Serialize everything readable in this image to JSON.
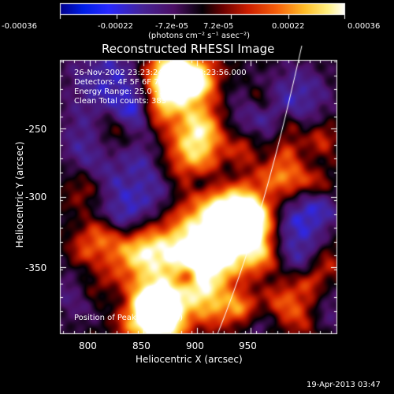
{
  "colorbar": {
    "tick_labels": [
      "-0.00036",
      "-0.00022",
      "-7.2e-05",
      "7.2e-05",
      "0.00022",
      "0.00036"
    ],
    "units": "(photons cm⁻² s⁻¹ asec⁻²)"
  },
  "title": "Reconstructed RHESSI Image",
  "info": {
    "time_range": "26-Nov-2002 23:23:24.000 to 23:23:56.000",
    "detectors": "Detectors: 4F 5F 6F 7F 8F, Att 0",
    "energy_range": "Energy Range: 25.0 - 50.0 keV",
    "clean": "Clean     Total counts: 383",
    "peak": "Position of Peak: (845,-383)"
  },
  "axes": {
    "x_label": "Heliocentric X (arcsec)",
    "y_label": "Heliocentric Y (arcsec)",
    "x_ticks": [
      "800",
      "850",
      "900",
      "950"
    ],
    "y_ticks": [
      "-250",
      "-300",
      "-350"
    ]
  },
  "footer": {
    "date": "19-Apr-2013 03:47"
  },
  "colors": {
    "background": "#000000",
    "foreground": "#ffffff"
  }
}
